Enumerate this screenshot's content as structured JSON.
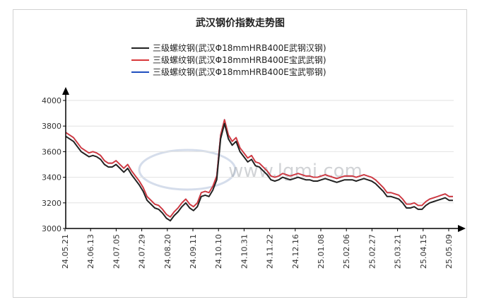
{
  "chart_data": {
    "type": "line",
    "title": "武汉钢价指数走势图",
    "xlabel": "",
    "ylabel": "",
    "ylim": [
      3000,
      4000
    ],
    "yticks": [
      3000,
      3200,
      3400,
      3600,
      3800,
      4000
    ],
    "x_tick_labels": [
      "24.05.21",
      "24.06.13",
      "24.07.05",
      "24.07.29",
      "24.08.20",
      "24.09.11",
      "24.10.10",
      "24.10.31",
      "24.11.22",
      "24.12.16",
      "25.01.08",
      "25.02.06",
      "25.02.27",
      "25.03.21",
      "25.04.15",
      "25.05.09"
    ],
    "grid": true,
    "legend_position": "top",
    "watermark": "www.lgmi.com",
    "series": [
      {
        "name": "三级螺纹钢(武汉Φ18mmHRB400E武钢汉钢)",
        "color": "#222222",
        "values": [
          3720,
          3700,
          3680,
          3640,
          3600,
          3580,
          3560,
          3570,
          3560,
          3540,
          3500,
          3480,
          3480,
          3500,
          3470,
          3440,
          3470,
          3420,
          3380,
          3340,
          3290,
          3220,
          3190,
          3160,
          3150,
          3120,
          3080,
          3060,
          3100,
          3130,
          3170,
          3200,
          3160,
          3140,
          3170,
          3250,
          3260,
          3250,
          3300,
          3380,
          3700,
          3820,
          3700,
          3650,
          3680,
          3600,
          3560,
          3520,
          3540,
          3490,
          3480,
          3450,
          3420,
          3380,
          3370,
          3380,
          3400,
          3390,
          3380,
          3390,
          3400,
          3390,
          3380,
          3380,
          3370,
          3370,
          3380,
          3390,
          3380,
          3370,
          3360,
          3370,
          3380,
          3380,
          3380,
          3370,
          3380,
          3390,
          3380,
          3370,
          3350,
          3320,
          3290,
          3250,
          3250,
          3240,
          3230,
          3200,
          3160,
          3160,
          3170,
          3150,
          3150,
          3180,
          3200,
          3210,
          3220,
          3230,
          3240,
          3220,
          3220
        ]
      },
      {
        "name": "三级螺纹钢(武汉Φ18mmHRB400E宝武武钢)",
        "color": "#d9383a",
        "values": [
          3750,
          3730,
          3710,
          3670,
          3630,
          3610,
          3590,
          3600,
          3590,
          3570,
          3530,
          3510,
          3510,
          3530,
          3500,
          3470,
          3500,
          3450,
          3410,
          3370,
          3320,
          3250,
          3220,
          3190,
          3180,
          3150,
          3110,
          3090,
          3130,
          3160,
          3200,
          3230,
          3190,
          3170,
          3200,
          3280,
          3290,
          3280,
          3330,
          3410,
          3730,
          3850,
          3730,
          3680,
          3710,
          3630,
          3590,
          3550,
          3570,
          3520,
          3510,
          3480,
          3450,
          3410,
          3400,
          3410,
          3430,
          3420,
          3410,
          3420,
          3430,
          3420,
          3410,
          3410,
          3400,
          3400,
          3410,
          3420,
          3410,
          3400,
          3390,
          3400,
          3410,
          3410,
          3410,
          3400,
          3410,
          3420,
          3410,
          3400,
          3380,
          3350,
          3320,
          3280,
          3280,
          3270,
          3260,
          3230,
          3190,
          3190,
          3200,
          3180,
          3180,
          3210,
          3230,
          3240,
          3250,
          3260,
          3270,
          3250,
          3250
        ]
      },
      {
        "name": "三级螺纹钢(武汉Φ18mmHRB400E宝武鄂钢)",
        "color": "#1f4fbf",
        "values": [
          3750,
          3730,
          3710,
          3670,
          3630,
          3610,
          3590,
          3600,
          3590,
          3570,
          3530,
          3510,
          3510,
          3530,
          3500,
          3470,
          3500,
          3450,
          3410,
          3370,
          3320,
          3250,
          3220,
          3190,
          3180,
          3150,
          3110,
          3090,
          3130,
          3160,
          3200,
          3230,
          3190,
          3170,
          3200,
          3280,
          3290,
          3280,
          3330,
          3410,
          3730,
          3850,
          3730,
          3680,
          3710,
          3630,
          3590,
          3550,
          3570,
          3520,
          3510,
          3480,
          3450,
          3410,
          3400,
          3410,
          3430,
          3420,
          3410,
          3420,
          3430,
          3420,
          3410,
          3410,
          3400,
          3400,
          3410,
          3420,
          3410,
          3400,
          3390,
          3400,
          3410,
          3410,
          3410,
          3400,
          3410,
          3420,
          3410,
          3400,
          3380,
          3350,
          3320,
          3280,
          3280,
          3270,
          3260,
          3230,
          3190,
          3190,
          3200,
          3180,
          3180,
          3210,
          3230,
          3240,
          3250,
          3260,
          3270,
          3250,
          3250
        ]
      }
    ]
  }
}
